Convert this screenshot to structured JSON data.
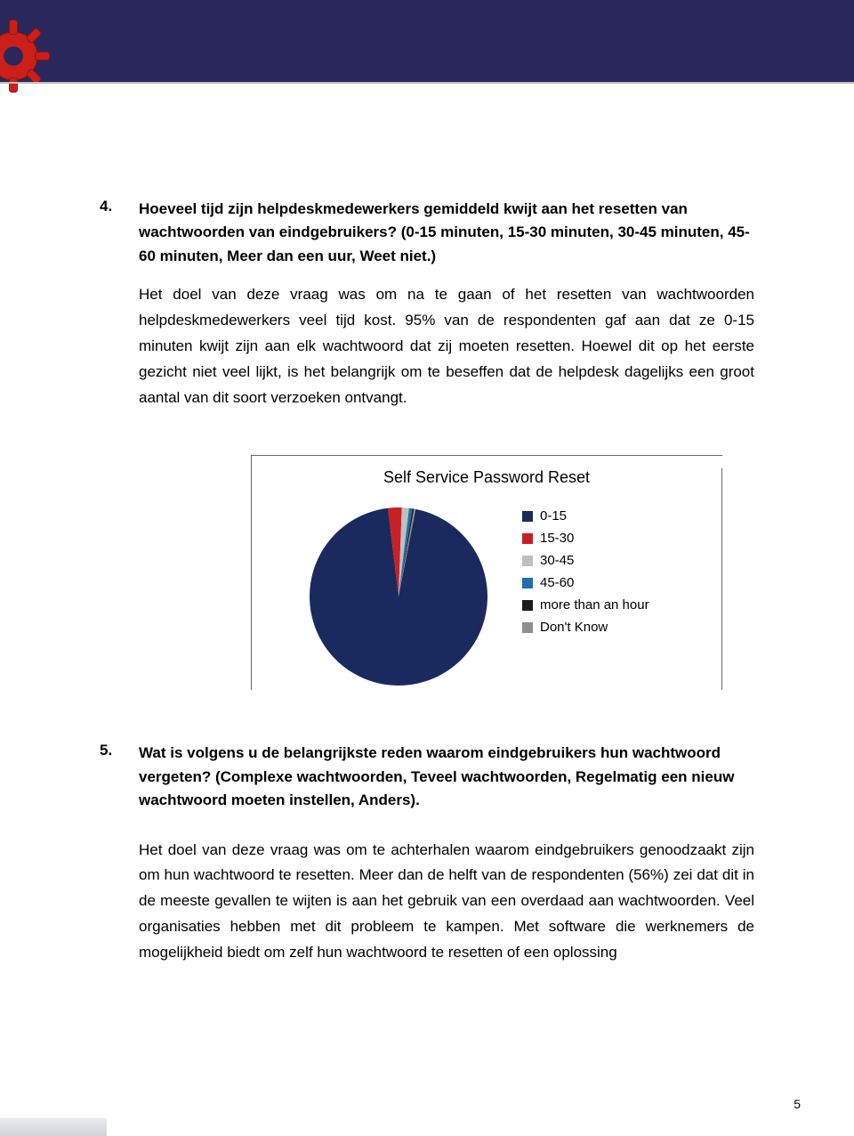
{
  "header": {
    "band_color": "#2a275a",
    "gear_color": "#cc1f1a"
  },
  "q4": {
    "number": "4.",
    "heading": "Hoeveel tijd zijn helpdeskmedewerkers gemiddeld kwijt aan het resetten van wachtwoorden van eindgebruikers? (0-15 minuten, 15-30 minuten, 30-45 minuten, 45-60 minuten, Meer dan een uur, Weet niet.)",
    "body": "Het doel van deze vraag was om na te gaan of het resetten van wachtwoorden helpdeskmedewerkers veel tijd kost. 95% van de respondenten gaf aan dat ze 0-15 minuten kwijt zijn aan elk wachtwoord dat zij moeten resetten. Hoewel dit op het eerste gezicht niet veel lijkt, is het belangrijk om te beseffen dat de helpdesk dagelijks een groot aantal van dit soort verzoeken ontvangt."
  },
  "chart": {
    "type": "pie",
    "title": "Self Service Password Reset",
    "background_color": "#ffffff",
    "border_color": "#666666",
    "slices": [
      {
        "label": "0-15",
        "value": 95,
        "color": "#1a2a5e"
      },
      {
        "label": "15-30",
        "value": 2.5,
        "color": "#c82024"
      },
      {
        "label": "30-45",
        "value": 1.3,
        "color": "#bfbfbf"
      },
      {
        "label": "45-60",
        "value": 0.6,
        "color": "#1f6fb0"
      },
      {
        "label": "more than an hour",
        "value": 0.3,
        "color": "#1c1c1c"
      },
      {
        "label": "Don't Know",
        "value": 0.3,
        "color": "#8f8f8f"
      }
    ],
    "legend_fontsize": 15,
    "title_fontsize": 18
  },
  "q5": {
    "number": "5.",
    "heading": "Wat is volgens u de belangrijkste reden waarom eindgebruikers hun wachtwoord vergeten? (Complexe wachtwoorden, Teveel wachtwoorden, Regelmatig een nieuw wachtwoord moeten instellen, Anders).",
    "body": "Het doel van deze vraag was om te achterhalen waarom eindgebruikers genoodzaakt zijn om hun wachtwoord te resetten. Meer dan de helft van de respondenten (56%) zei dat dit in de meeste gevallen te wijten is aan het gebruik van een overdaad aan wachtwoorden. Veel organisaties hebben met dit probleem te kampen. Met software die werknemers de mogelijkheid biedt om zelf hun wachtwoord te resetten of een oplossing"
  },
  "page_number": "5"
}
